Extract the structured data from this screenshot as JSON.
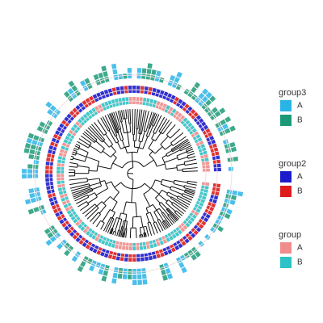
{
  "legend": {
    "groups": [
      {
        "title": "group3",
        "items": [
          {
            "label": "A",
            "color": "#2ab4e6"
          },
          {
            "label": "B",
            "color": "#1c9a78"
          }
        ]
      },
      {
        "title": "group2",
        "items": [
          {
            "label": "A",
            "color": "#1b1bcc"
          },
          {
            "label": "B",
            "color": "#dd1c1c"
          }
        ]
      },
      {
        "title": "group",
        "items": [
          {
            "label": "A",
            "color": "#f08c8c"
          },
          {
            "label": "B",
            "color": "#2cc2c6"
          }
        ]
      }
    ]
  }
}
